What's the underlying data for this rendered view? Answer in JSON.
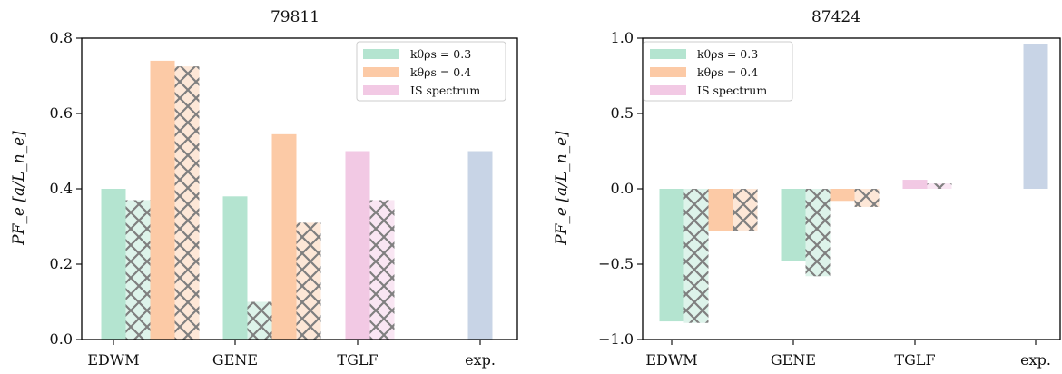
{
  "colors": {
    "green": "#b4e4d0",
    "orange": "#fccaa6",
    "pink": "#f2c9e4",
    "blue": "#c8d4e6",
    "hatch": "#7f7f7f"
  },
  "chart_data": [
    {
      "type": "bar",
      "title": "79811",
      "ylabel": "PF_e [a/L_n_e]",
      "ylim": [
        0,
        0.8
      ],
      "yticks": [
        0.0,
        0.2,
        0.4,
        0.6,
        0.8
      ],
      "ytick_labels": [
        "0.0",
        "0.2",
        "0.4",
        "0.6",
        "0.8"
      ],
      "categories": [
        "EDWM",
        "GENE",
        "TGLF",
        "exp."
      ],
      "grid": false,
      "legend_position": "top-right",
      "legend": [
        "kθρs = 0.3",
        "kθρs = 0.4",
        "IS spectrum"
      ],
      "series": [
        {
          "name": "kθρs = 0.3",
          "color": "green",
          "hatched": false,
          "values": [
            0.4,
            0.38,
            null,
            null
          ]
        },
        {
          "name": "kθρs = 0.3",
          "color": "green",
          "hatched": true,
          "values": [
            0.37,
            0.1,
            null,
            null
          ]
        },
        {
          "name": "kθρs = 0.4",
          "color": "orange",
          "hatched": false,
          "values": [
            0.74,
            0.545,
            null,
            null
          ]
        },
        {
          "name": "kθρs = 0.4",
          "color": "orange",
          "hatched": true,
          "values": [
            0.725,
            0.31,
            null,
            null
          ]
        },
        {
          "name": "IS spectrum",
          "color": "pink",
          "hatched": false,
          "values": [
            null,
            null,
            0.5,
            null
          ]
        },
        {
          "name": "IS spectrum",
          "color": "pink",
          "hatched": true,
          "values": [
            null,
            null,
            0.37,
            null
          ]
        },
        {
          "name": "",
          "color": "blue",
          "hatched": false,
          "values": [
            null,
            null,
            null,
            0.5
          ]
        }
      ]
    },
    {
      "type": "bar",
      "title": "87424",
      "ylabel": "PF_e [a/L_n_e]",
      "ylim": [
        -1.0,
        1.0
      ],
      "yticks": [
        -1.0,
        -0.5,
        0.0,
        0.5,
        1.0
      ],
      "ytick_labels": [
        "−1.0",
        "−0.5",
        "0.0",
        "0.5",
        "1.0"
      ],
      "categories": [
        "EDWM",
        "GENE",
        "TGLF",
        "exp."
      ],
      "grid": false,
      "legend_position": "top-left",
      "legend": [
        "kθρs = 0.3",
        "kθρs = 0.4",
        "IS spectrum"
      ],
      "series": [
        {
          "name": "kθρs = 0.3",
          "color": "green",
          "hatched": false,
          "values": [
            -0.88,
            -0.48,
            null,
            null
          ]
        },
        {
          "name": "kθρs = 0.3",
          "color": "green",
          "hatched": true,
          "values": [
            -0.89,
            -0.58,
            null,
            null
          ]
        },
        {
          "name": "kθρs = 0.4",
          "color": "orange",
          "hatched": false,
          "values": [
            -0.28,
            -0.08,
            null,
            null
          ]
        },
        {
          "name": "kθρs = 0.4",
          "color": "orange",
          "hatched": true,
          "values": [
            -0.28,
            -0.12,
            null,
            null
          ]
        },
        {
          "name": "IS spectrum",
          "color": "pink",
          "hatched": false,
          "values": [
            null,
            null,
            0.06,
            null
          ]
        },
        {
          "name": "IS spectrum",
          "color": "pink",
          "hatched": true,
          "values": [
            null,
            null,
            0.035,
            null
          ]
        },
        {
          "name": "",
          "color": "blue",
          "hatched": false,
          "values": [
            null,
            null,
            null,
            0.96
          ]
        }
      ]
    }
  ]
}
